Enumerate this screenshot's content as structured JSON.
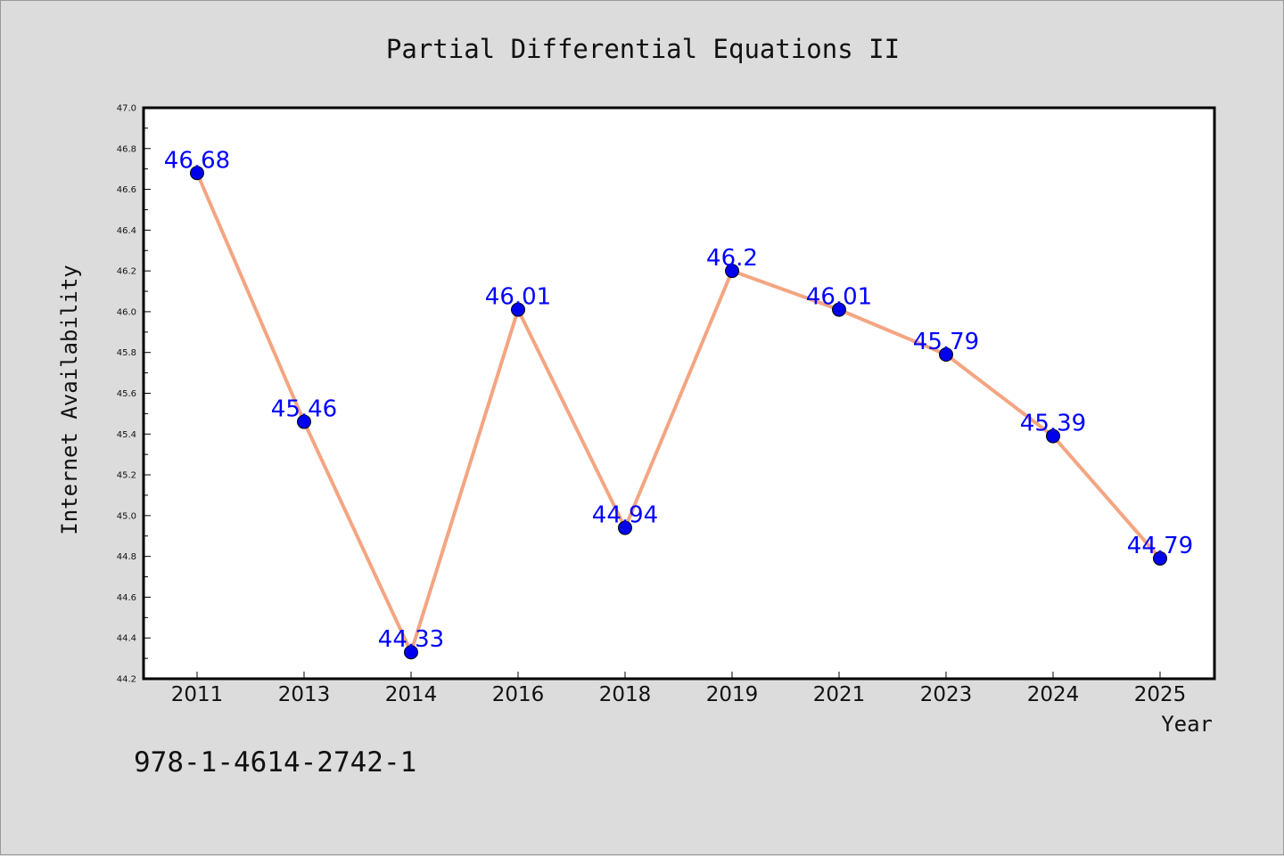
{
  "chart_data": {
    "type": "line",
    "title": "Partial Differential Equations II",
    "xlabel": "Year",
    "ylabel": "Internet Availability",
    "categories": [
      "2011",
      "2013",
      "2014",
      "2016",
      "2018",
      "2019",
      "2021",
      "2023",
      "2024",
      "2025"
    ],
    "series": [
      {
        "values": [
          46.68,
          45.46,
          44.33,
          46.01,
          44.94,
          46.2,
          46.01,
          45.79,
          45.39,
          44.79
        ],
        "labels": [
          "46.68",
          "45.46",
          "44.33",
          "46.01",
          "44.94",
          "46.2",
          "46.01",
          "45.79",
          "45.39",
          "44.79"
        ]
      }
    ],
    "ylim": [
      44.2,
      47.0
    ],
    "yticks": [
      "44.2",
      "44.4",
      "44.6",
      "44.8",
      "45.0",
      "45.2",
      "45.4",
      "45.6",
      "45.8",
      "46.0",
      "46.2",
      "46.4",
      "46.6",
      "46.8",
      "47.0"
    ],
    "grid": false,
    "line_color": "#f4a582",
    "marker_color": "#0000ee",
    "label_color": "#0000ff"
  },
  "footer": {
    "isbn": "978-1-4614-2742-1"
  }
}
